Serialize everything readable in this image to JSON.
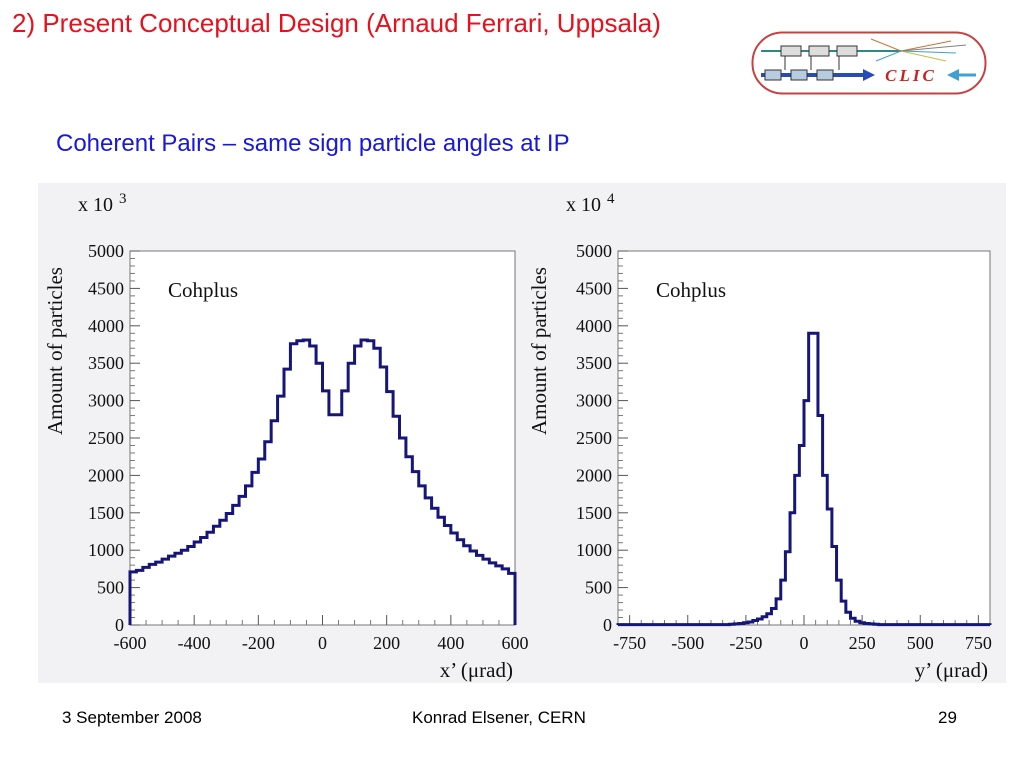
{
  "slide": {
    "title": "2) Present Conceptual Design (Arnaud Ferrari, Uppsala)",
    "subtitle": "Coherent Pairs – same sign particle angles at IP",
    "logo_text": "CLIC"
  },
  "footer": {
    "date": "3 September 2008",
    "author": "Konrad Elsener, CERN",
    "page": "29"
  },
  "colors": {
    "title": "#e8101c",
    "subtitle": "#1717e0",
    "histogram": "#15157a",
    "logo_border": "#c84040"
  },
  "chart_data": [
    {
      "type": "histogram",
      "annotation": "Cohplus",
      "scale_label": "x 10",
      "scale_exponent": "3",
      "xlabel": "x’  (μrad)",
      "ylabel": "Amount of particles",
      "xlim": [
        -600,
        600
      ],
      "ylim": [
        0,
        5000
      ],
      "xticks": [
        -600,
        -400,
        -200,
        0,
        200,
        400,
        600
      ],
      "yticks": [
        0,
        500,
        1000,
        1500,
        2000,
        2500,
        3000,
        3500,
        4000,
        4500,
        5000
      ],
      "bin_width": 20,
      "bin_edges_start": -600,
      "values": [
        710,
        730,
        770,
        810,
        840,
        880,
        920,
        960,
        1000,
        1050,
        1110,
        1170,
        1240,
        1320,
        1400,
        1490,
        1600,
        1720,
        1860,
        2040,
        2220,
        2450,
        2730,
        3060,
        3420,
        3760,
        3800,
        3810,
        3730,
        3500,
        3130,
        2810,
        2810,
        3130,
        3500,
        3730,
        3810,
        3800,
        3700,
        3450,
        3120,
        2790,
        2500,
        2250,
        2050,
        1860,
        1700,
        1560,
        1440,
        1330,
        1230,
        1140,
        1060,
        990,
        930,
        880,
        830,
        790,
        750,
        690
      ]
    },
    {
      "type": "histogram",
      "annotation": "Cohplus",
      "scale_label": "x 10",
      "scale_exponent": "4",
      "xlabel": "y’  (μrad)",
      "ylabel": "Amount of particles",
      "xlim": [
        -800,
        800
      ],
      "ylim": [
        0,
        5000
      ],
      "xticks": [
        -750,
        -500,
        -250,
        0,
        250,
        500,
        750
      ],
      "yticks": [
        0,
        500,
        1000,
        1500,
        2000,
        2500,
        3000,
        3500,
        4000,
        4500,
        5000
      ],
      "bin_width": 20,
      "bin_edges_start": -800,
      "values": [
        5,
        5,
        5,
        5,
        5,
        5,
        5,
        5,
        5,
        5,
        5,
        5,
        5,
        5,
        5,
        5,
        5,
        5,
        5,
        5,
        5,
        5,
        5,
        5,
        10,
        15,
        20,
        30,
        40,
        60,
        80,
        110,
        150,
        220,
        350,
        600,
        980,
        1500,
        2000,
        2400,
        3000,
        3900,
        3900,
        2800,
        2000,
        1550,
        1050,
        600,
        320,
        170,
        90,
        50,
        30,
        20,
        15,
        10,
        5,
        5,
        5,
        5,
        5,
        5,
        5,
        5,
        5,
        5,
        5,
        5,
        5,
        5,
        5,
        5,
        5,
        5,
        5,
        5,
        5,
        5,
        5,
        5
      ]
    }
  ]
}
